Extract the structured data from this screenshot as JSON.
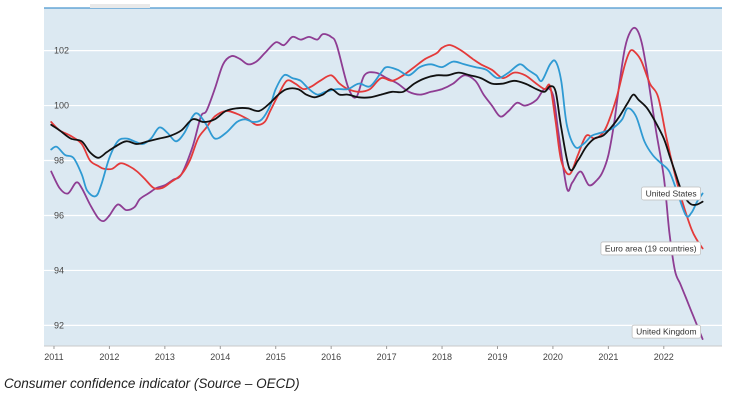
{
  "caption": "Consumer confidence indicator (Source – OECD)",
  "chart_data": {
    "type": "line",
    "xlim": [
      2010.82,
      2023.05
    ],
    "ylim": [
      91.25,
      103.55
    ],
    "x_ticks": [
      2011,
      2012,
      2013,
      2014,
      2015,
      2016,
      2017,
      2018,
      2019,
      2020,
      2021,
      2022
    ],
    "x_tick_labels": [
      "2011",
      "2012",
      "2013",
      "2014",
      "2015",
      "2016",
      "2017",
      "2018",
      "2019",
      "2020",
      "2021",
      "2022"
    ],
    "y_ticks": [
      92,
      94,
      96,
      98,
      100,
      102
    ],
    "y_tick_labels": [
      "92",
      "94",
      "96",
      "98",
      "100",
      "102"
    ],
    "grid": "horizontal",
    "colors": {
      "plot_background": "#dce9f2",
      "gridline": "#ffffff",
      "top_border": "#4a96cf",
      "axis": "#c9c9c9"
    },
    "series": [
      {
        "name": "United Kingdom",
        "color": "#8e3d93",
        "end_label": "United Kingdom",
        "x": [
          2010.95,
          2011.1,
          2011.25,
          2011.4,
          2011.5,
          2011.65,
          2011.8,
          2011.9,
          2012.0,
          2012.15,
          2012.3,
          2012.45,
          2012.55,
          2012.7,
          2012.85,
          2013.0,
          2013.15,
          2013.3,
          2013.5,
          2013.65,
          2013.75,
          2013.9,
          2014.05,
          2014.2,
          2014.35,
          2014.5,
          2014.65,
          2014.8,
          2015.0,
          2015.15,
          2015.3,
          2015.45,
          2015.6,
          2015.75,
          2015.85,
          2016.0,
          2016.1,
          2016.3,
          2016.45,
          2016.6,
          2016.8,
          2017.0,
          2017.2,
          2017.4,
          2017.6,
          2017.8,
          2018.0,
          2018.2,
          2018.4,
          2018.6,
          2018.75,
          2018.9,
          2019.05,
          2019.2,
          2019.35,
          2019.5,
          2019.7,
          2019.85,
          2020.0,
          2020.1,
          2020.25,
          2020.35,
          2020.5,
          2020.65,
          2020.8,
          2020.9,
          2021.0,
          2021.1,
          2021.2,
          2021.3,
          2021.4,
          2021.5,
          2021.6,
          2021.7,
          2021.85,
          2022.0,
          2022.1,
          2022.2,
          2022.3,
          2022.4,
          2022.5,
          2022.6,
          2022.7
        ],
        "y": [
          97.6,
          97.0,
          96.8,
          97.2,
          97.0,
          96.4,
          95.9,
          95.8,
          96.0,
          96.4,
          96.2,
          96.3,
          96.6,
          96.8,
          97.0,
          97.1,
          97.3,
          97.5,
          98.5,
          99.6,
          99.8,
          100.6,
          101.5,
          101.8,
          101.7,
          101.5,
          101.6,
          101.9,
          102.3,
          102.2,
          102.5,
          102.4,
          102.5,
          102.4,
          102.6,
          102.5,
          102.2,
          100.7,
          100.3,
          101.1,
          101.2,
          101.0,
          100.8,
          100.5,
          100.4,
          100.5,
          100.6,
          100.8,
          101.1,
          100.9,
          100.4,
          100.0,
          99.6,
          99.8,
          100.1,
          100.0,
          100.2,
          100.6,
          100.4,
          99.0,
          97.0,
          97.2,
          97.6,
          97.1,
          97.3,
          97.6,
          98.2,
          99.3,
          100.8,
          102.1,
          102.7,
          102.8,
          102.3,
          101.2,
          99.2,
          97.4,
          95.4,
          94.0,
          93.5,
          93.0,
          92.5,
          92.0,
          91.5
        ]
      },
      {
        "name": "Euro area (19 countries)",
        "color": "#e43a3a",
        "end_label": "Euro area (19 countries)",
        "x": [
          2010.95,
          2011.1,
          2011.3,
          2011.5,
          2011.65,
          2011.8,
          2011.9,
          2012.05,
          2012.2,
          2012.35,
          2012.5,
          2012.65,
          2012.8,
          2012.95,
          2013.1,
          2013.3,
          2013.45,
          2013.6,
          2013.75,
          2013.9,
          2014.1,
          2014.3,
          2014.5,
          2014.65,
          2014.8,
          2014.9,
          2015.05,
          2015.2,
          2015.35,
          2015.5,
          2015.65,
          2015.8,
          2016.0,
          2016.15,
          2016.3,
          2016.5,
          2016.7,
          2016.9,
          2017.1,
          2017.3,
          2017.5,
          2017.7,
          2017.9,
          2018.0,
          2018.15,
          2018.35,
          2018.55,
          2018.7,
          2018.9,
          2019.1,
          2019.3,
          2019.5,
          2019.7,
          2019.85,
          2019.95,
          2020.05,
          2020.15,
          2020.3,
          2020.45,
          2020.6,
          2020.75,
          2020.9,
          2021.0,
          2021.15,
          2021.3,
          2021.4,
          2021.5,
          2021.6,
          2021.75,
          2021.9,
          2022.05,
          2022.2,
          2022.35,
          2022.5,
          2022.6,
          2022.7
        ],
        "y": [
          99.4,
          99.1,
          98.9,
          98.6,
          98.0,
          97.8,
          97.7,
          97.7,
          97.9,
          97.8,
          97.6,
          97.3,
          97.0,
          97.0,
          97.2,
          97.5,
          98.0,
          98.8,
          99.2,
          99.6,
          99.8,
          99.7,
          99.5,
          99.3,
          99.4,
          99.8,
          100.4,
          100.9,
          100.8,
          100.6,
          100.7,
          100.9,
          101.1,
          100.8,
          100.6,
          100.5,
          100.6,
          101.0,
          100.9,
          101.1,
          101.4,
          101.7,
          101.9,
          102.1,
          102.2,
          102.0,
          101.7,
          101.5,
          101.3,
          101.0,
          101.2,
          101.1,
          100.8,
          100.6,
          100.7,
          99.4,
          98.0,
          97.5,
          98.2,
          98.9,
          98.8,
          99.0,
          99.4,
          100.3,
          101.5,
          102.0,
          101.9,
          101.6,
          100.8,
          100.3,
          98.8,
          97.5,
          96.4,
          95.5,
          95.1,
          94.8
        ]
      },
      {
        "name": "United States",
        "color": "#2f9ad3",
        "end_label": "United States",
        "x": [
          2010.95,
          2011.05,
          2011.2,
          2011.35,
          2011.5,
          2011.6,
          2011.75,
          2011.85,
          2012.0,
          2012.15,
          2012.3,
          2012.45,
          2012.6,
          2012.75,
          2012.9,
          2013.05,
          2013.2,
          2013.35,
          2013.5,
          2013.6,
          2013.75,
          2013.9,
          2014.1,
          2014.3,
          2014.45,
          2014.6,
          2014.75,
          2014.9,
          2015.0,
          2015.15,
          2015.3,
          2015.45,
          2015.6,
          2015.75,
          2015.9,
          2016.1,
          2016.3,
          2016.5,
          2016.7,
          2016.9,
          2017.0,
          2017.2,
          2017.4,
          2017.6,
          2017.8,
          2018.0,
          2018.2,
          2018.4,
          2018.6,
          2018.8,
          2019.0,
          2019.2,
          2019.4,
          2019.55,
          2019.7,
          2019.8,
          2019.95,
          2020.05,
          2020.15,
          2020.25,
          2020.4,
          2020.55,
          2020.7,
          2020.85,
          2021.0,
          2021.1,
          2021.25,
          2021.35,
          2021.5,
          2021.65,
          2021.8,
          2021.95,
          2022.1,
          2022.25,
          2022.4,
          2022.5,
          2022.6,
          2022.7
        ],
        "y": [
          98.4,
          98.5,
          98.2,
          98.1,
          97.5,
          96.9,
          96.7,
          97.1,
          98.1,
          98.7,
          98.8,
          98.7,
          98.6,
          98.8,
          99.2,
          99.0,
          98.7,
          99.0,
          99.6,
          99.7,
          99.3,
          98.8,
          99.0,
          99.4,
          99.5,
          99.4,
          99.5,
          100.0,
          100.6,
          101.1,
          101.0,
          100.9,
          100.6,
          100.4,
          100.5,
          100.6,
          100.6,
          100.8,
          100.7,
          101.2,
          101.4,
          101.3,
          101.1,
          101.4,
          101.5,
          101.4,
          101.6,
          101.5,
          101.4,
          101.3,
          101.0,
          101.2,
          101.5,
          101.3,
          101.1,
          100.9,
          101.5,
          101.6,
          100.9,
          99.3,
          98.5,
          98.6,
          98.9,
          99.0,
          99.1,
          99.2,
          99.5,
          99.9,
          99.6,
          98.7,
          98.2,
          97.9,
          97.6,
          96.8,
          96.0,
          96.1,
          96.5,
          96.8
        ]
      },
      {
        "name": "",
        "color": "#111111",
        "end_label": "",
        "x": [
          2010.95,
          2011.1,
          2011.3,
          2011.5,
          2011.65,
          2011.8,
          2011.95,
          2012.1,
          2012.3,
          2012.5,
          2012.7,
          2012.9,
          2013.1,
          2013.3,
          2013.5,
          2013.7,
          2013.9,
          2014.1,
          2014.3,
          2014.5,
          2014.7,
          2014.9,
          2015.05,
          2015.2,
          2015.4,
          2015.55,
          2015.7,
          2015.85,
          2016.0,
          2016.15,
          2016.3,
          2016.5,
          2016.7,
          2016.9,
          2017.1,
          2017.3,
          2017.5,
          2017.7,
          2017.9,
          2018.1,
          2018.3,
          2018.5,
          2018.7,
          2018.9,
          2019.1,
          2019.3,
          2019.5,
          2019.7,
          2019.85,
          2019.95,
          2020.05,
          2020.15,
          2020.3,
          2020.45,
          2020.6,
          2020.75,
          2020.9,
          2021.05,
          2021.2,
          2021.35,
          2021.45,
          2021.55,
          2021.7,
          2021.85,
          2022.0,
          2022.1,
          2022.2,
          2022.3,
          2022.4,
          2022.5,
          2022.6,
          2022.7
        ],
        "y": [
          99.3,
          99.1,
          98.8,
          98.7,
          98.3,
          98.1,
          98.3,
          98.5,
          98.7,
          98.6,
          98.7,
          98.8,
          98.9,
          99.1,
          99.5,
          99.4,
          99.5,
          99.8,
          99.9,
          99.9,
          99.8,
          100.1,
          100.4,
          100.6,
          100.6,
          100.4,
          100.3,
          100.4,
          100.6,
          100.4,
          100.4,
          100.3,
          100.3,
          100.4,
          100.5,
          100.5,
          100.8,
          101.0,
          101.1,
          101.1,
          101.2,
          101.1,
          101.0,
          100.8,
          100.8,
          100.9,
          100.8,
          100.6,
          100.5,
          100.7,
          100.5,
          99.2,
          97.7,
          98.0,
          98.5,
          98.8,
          98.9,
          99.2,
          99.6,
          100.1,
          100.4,
          100.2,
          99.9,
          99.4,
          98.8,
          98.2,
          97.6,
          97.0,
          96.6,
          96.4,
          96.4,
          96.5
        ]
      }
    ]
  }
}
